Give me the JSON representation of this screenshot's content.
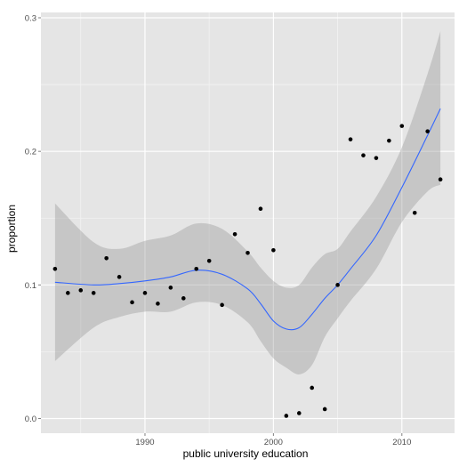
{
  "chart_data": {
    "type": "scatter",
    "xlabel": "public university education",
    "ylabel": "proportion",
    "xlim": [
      1981.9,
      2014.1
    ],
    "ylim": [
      -0.011,
      0.304
    ],
    "x_ticks": [
      1990,
      2000,
      2010
    ],
    "y_ticks": [
      0.0,
      0.1,
      0.2,
      0.3
    ],
    "x_tick_labels": [
      "1990",
      "2000",
      "2010"
    ],
    "y_tick_labels": [
      "0.0",
      "0.1",
      "0.2",
      "0.3"
    ],
    "grid": true,
    "colors": {
      "panel_background": "#e5e5e5",
      "grid_major": "#ffffff",
      "grid_minor": "#f2f2f2",
      "points": "#000000",
      "smooth_line": "#3366ff",
      "confidence_band": "#999999"
    },
    "points": [
      {
        "x": 1983,
        "y": 0.112
      },
      {
        "x": 1984,
        "y": 0.094
      },
      {
        "x": 1985,
        "y": 0.096
      },
      {
        "x": 1986,
        "y": 0.094
      },
      {
        "x": 1987,
        "y": 0.12
      },
      {
        "x": 1988,
        "y": 0.106
      },
      {
        "x": 1989,
        "y": 0.087
      },
      {
        "x": 1990,
        "y": 0.094
      },
      {
        "x": 1991,
        "y": 0.086
      },
      {
        "x": 1992,
        "y": 0.098
      },
      {
        "x": 1993,
        "y": 0.09
      },
      {
        "x": 1994,
        "y": 0.112
      },
      {
        "x": 1995,
        "y": 0.118
      },
      {
        "x": 1996,
        "y": 0.085
      },
      {
        "x": 1997,
        "y": 0.138
      },
      {
        "x": 1998,
        "y": 0.124
      },
      {
        "x": 1999,
        "y": 0.157
      },
      {
        "x": 2000,
        "y": 0.126
      },
      {
        "x": 2001,
        "y": 0.002
      },
      {
        "x": 2002,
        "y": 0.004
      },
      {
        "x": 2003,
        "y": 0.023
      },
      {
        "x": 2004,
        "y": 0.007
      },
      {
        "x": 2005,
        "y": 0.1
      },
      {
        "x": 2006,
        "y": 0.209
      },
      {
        "x": 2007,
        "y": 0.197
      },
      {
        "x": 2008,
        "y": 0.195
      },
      {
        "x": 2009,
        "y": 0.208
      },
      {
        "x": 2010,
        "y": 0.219
      },
      {
        "x": 2011,
        "y": 0.154
      },
      {
        "x": 2012,
        "y": 0.215
      },
      {
        "x": 2013,
        "y": 0.179
      }
    ],
    "smooth": [
      {
        "x": 1983,
        "y": 0.102,
        "lower": 0.043,
        "upper": 0.161
      },
      {
        "x": 1986,
        "y": 0.1,
        "lower": 0.068,
        "upper": 0.132
      },
      {
        "x": 1988,
        "y": 0.101,
        "lower": 0.076,
        "upper": 0.127
      },
      {
        "x": 1990,
        "y": 0.103,
        "lower": 0.08,
        "upper": 0.133
      },
      {
        "x": 1992,
        "y": 0.106,
        "lower": 0.08,
        "upper": 0.137
      },
      {
        "x": 1994,
        "y": 0.111,
        "lower": 0.087,
        "upper": 0.146
      },
      {
        "x": 1996,
        "y": 0.108,
        "lower": 0.085,
        "upper": 0.142
      },
      {
        "x": 1998,
        "y": 0.097,
        "lower": 0.072,
        "upper": 0.125
      },
      {
        "x": 1999,
        "y": 0.086,
        "lower": 0.058,
        "upper": 0.113
      },
      {
        "x": 2000,
        "y": 0.073,
        "lower": 0.045,
        "upper": 0.103
      },
      {
        "x": 2001,
        "y": 0.067,
        "lower": 0.038,
        "upper": 0.098
      },
      {
        "x": 2002,
        "y": 0.068,
        "lower": 0.033,
        "upper": 0.1
      },
      {
        "x": 2003,
        "y": 0.078,
        "lower": 0.04,
        "upper": 0.113
      },
      {
        "x": 2004,
        "y": 0.09,
        "lower": 0.061,
        "upper": 0.123
      },
      {
        "x": 2005,
        "y": 0.1,
        "lower": 0.075,
        "upper": 0.127
      },
      {
        "x": 2006,
        "y": 0.112,
        "lower": 0.088,
        "upper": 0.14
      },
      {
        "x": 2008,
        "y": 0.137,
        "lower": 0.112,
        "upper": 0.166
      },
      {
        "x": 2010,
        "y": 0.173,
        "lower": 0.147,
        "upper": 0.203
      },
      {
        "x": 2012,
        "y": 0.212,
        "lower": 0.17,
        "upper": 0.258
      },
      {
        "x": 2013,
        "y": 0.232,
        "lower": 0.175,
        "upper": 0.29
      }
    ]
  }
}
